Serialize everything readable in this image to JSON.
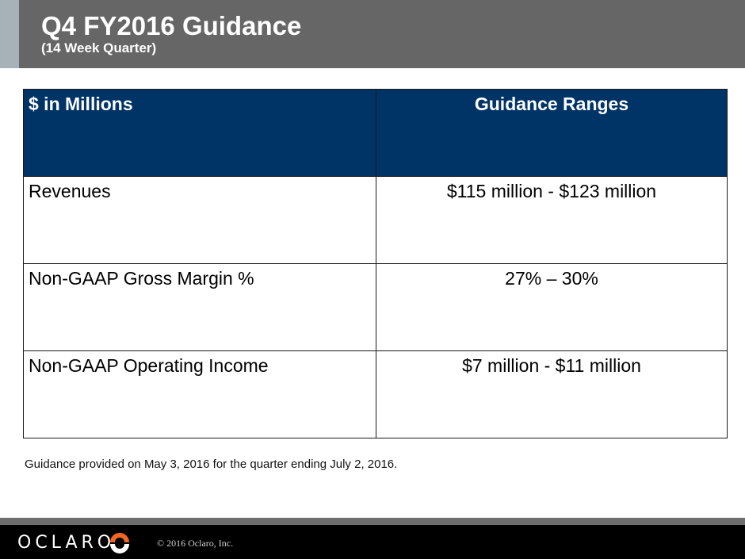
{
  "slide": {
    "title": "Q4 FY2016 Guidance",
    "subtitle": "(14 Week Quarter)"
  },
  "table": {
    "headers": [
      "$ in Millions",
      "Guidance Ranges"
    ],
    "rows": [
      [
        "Revenues",
        "$115 million - $123 million"
      ],
      [
        "Non-GAAP Gross Margin %",
        "27% – 30%"
      ],
      [
        "Non-GAAP Operating Income",
        "$7 million  - $11 million"
      ]
    ]
  },
  "footnote": "Guidance provided on May 3, 2016 for the quarter ending July 2, 2016.",
  "footer": {
    "logo_text": "OCLARO",
    "copyright": "© 2016 Oclaro, Inc."
  },
  "colors": {
    "header_bg": "#666666",
    "table_header_bg": "#003366",
    "logo_accent": "#f26522"
  }
}
